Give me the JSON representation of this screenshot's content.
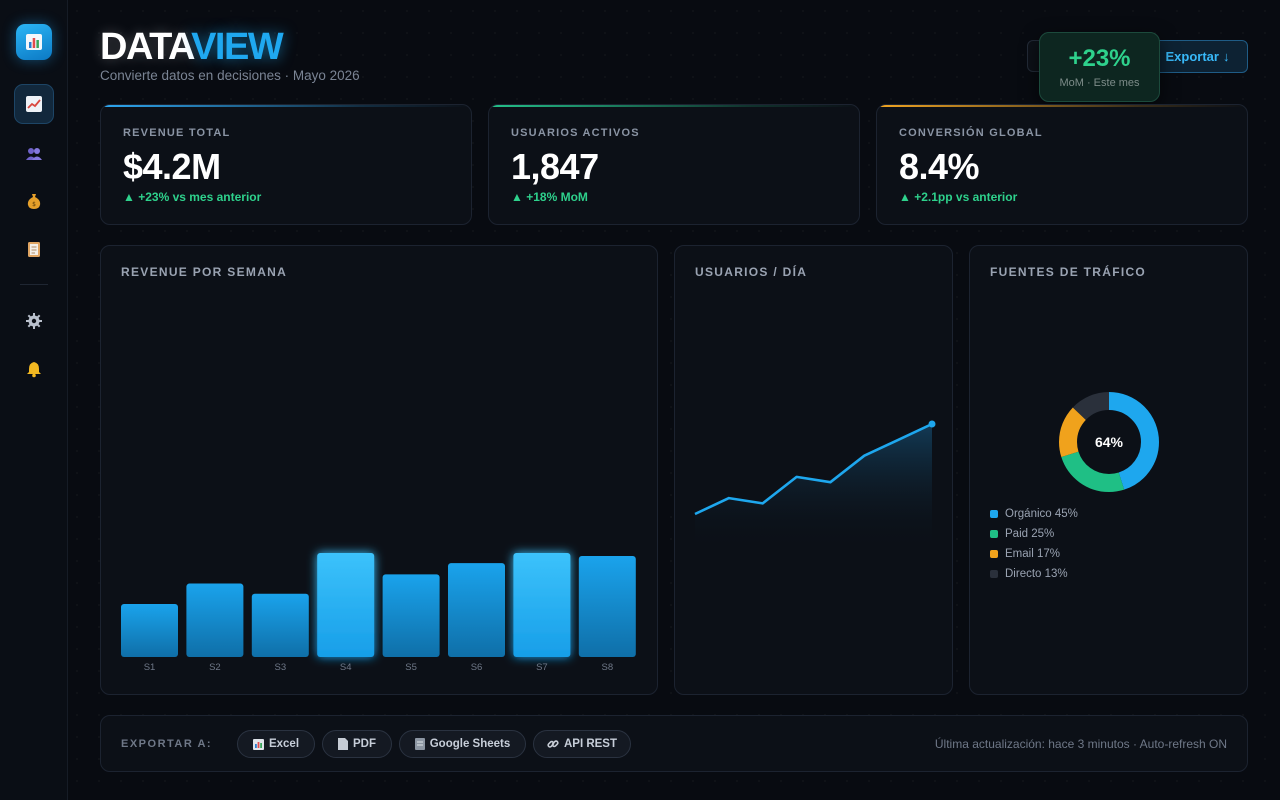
{
  "sidebar": {
    "logo_icon": "bar-chart-icon",
    "items": [
      {
        "icon": "chart-up-icon",
        "glyph": "📈",
        "active": true
      },
      {
        "icon": "users-icon",
        "glyph": "👥",
        "active": false
      },
      {
        "icon": "money-bag-icon",
        "glyph": "💰",
        "active": false
      },
      {
        "icon": "clipboard-icon",
        "glyph": "📋",
        "active": false
      },
      {
        "icon": "gear-icon",
        "glyph": "⚙️",
        "active": false
      },
      {
        "icon": "bell-icon",
        "glyph": "🔔",
        "active": false
      }
    ]
  },
  "header": {
    "brand_a": "DATA",
    "brand_b": "VIEW",
    "subtitle": "Convierte datos en decisiones · Mayo 2026",
    "export_label": "Exportar",
    "export_icon": "↓",
    "badge": {
      "value": "+23%",
      "caption": "MoM · Este mes"
    }
  },
  "kpis": [
    {
      "label": "REVENUE TOTAL",
      "value": "$4.2M",
      "delta": "▲ +23% vs mes anterior",
      "accent": "#2ea8f2"
    },
    {
      "label": "USUARIOS ACTIVOS",
      "value": "1,847",
      "delta": "▲ +18% MoM",
      "accent": "#24c28a"
    },
    {
      "label": "CONVERSIÓN GLOBAL",
      "value": "8.4%",
      "delta": "▲ +2.1pp vs anterior",
      "accent": "#f2a623"
    }
  ],
  "revenue_panel": {
    "title": "REVENUE POR SEMANA"
  },
  "users_panel": {
    "title": "USUARIOS / DÍA"
  },
  "traffic_panel": {
    "title": "FUENTES DE TRÁFICO",
    "center_label": "64%",
    "legend": [
      "Orgánico 45%",
      "Paid 25%",
      "Email 17%",
      "Directo 13%"
    ]
  },
  "chart_data": [
    {
      "type": "bar",
      "title": "REVENUE POR SEMANA",
      "categories": [
        "S1",
        "S2",
        "S3",
        "S4",
        "S5",
        "S6",
        "S7",
        "S8"
      ],
      "values": [
        52,
        72,
        62,
        102,
        81,
        92,
        102,
        99
      ],
      "highlight": [
        false,
        false,
        false,
        true,
        false,
        false,
        true,
        false
      ],
      "ylim": [
        0,
        100
      ]
    },
    {
      "type": "area",
      "title": "USUARIOS / DÍA",
      "x": [
        1,
        2,
        3,
        4,
        5,
        6,
        7,
        8
      ],
      "values": [
        28,
        40,
        36,
        56,
        52,
        72,
        84,
        96
      ],
      "ylim": [
        0,
        100
      ]
    },
    {
      "type": "pie",
      "title": "FUENTES DE TRÁFICO",
      "labels": [
        "Orgánico",
        "Paid",
        "Email",
        "Directo"
      ],
      "values": [
        45,
        25,
        17,
        13
      ],
      "colors": [
        "#1ea7ee",
        "#1fbf85",
        "#f0a21c",
        "#2a303b"
      ]
    }
  ],
  "export_bar": {
    "label": "EXPORTAR A:",
    "options": [
      {
        "label": "Excel",
        "icon": "spreadsheet-icon",
        "glyph": "📊"
      },
      {
        "label": "PDF",
        "icon": "document-icon",
        "glyph": "📄"
      },
      {
        "label": "Google Sheets",
        "icon": "sheet-icon",
        "glyph": "📗"
      },
      {
        "label": "API REST",
        "icon": "link-icon",
        "glyph": "🔗"
      }
    ],
    "status": "Última actualización: hace 3 minutos · Auto-refresh ON"
  }
}
